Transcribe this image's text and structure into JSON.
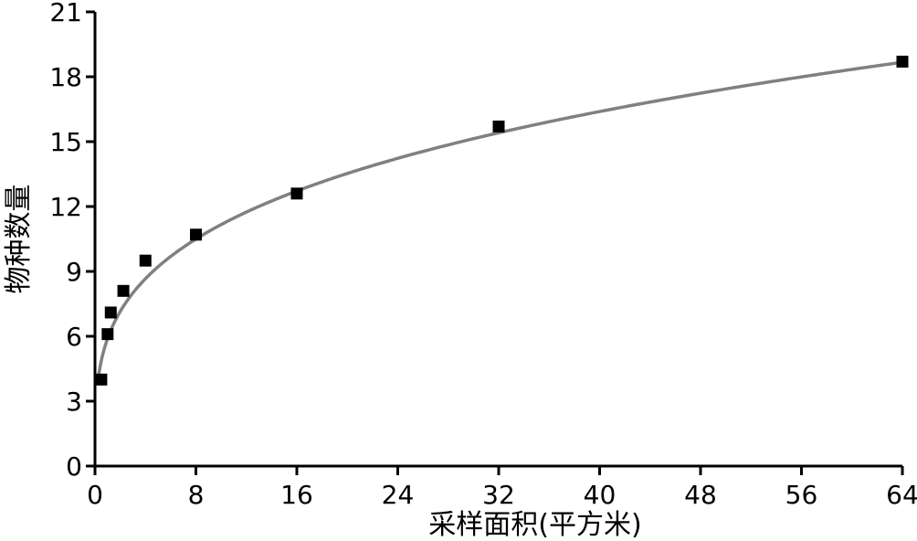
{
  "chart_data": {
    "type": "scatter",
    "xlabel": "采样面积(平方米)",
    "ylabel": "物种数量",
    "xlim": [
      0,
      64
    ],
    "ylim": [
      0,
      21
    ],
    "xticks": [
      "0",
      "8",
      "16",
      "24",
      "32",
      "40",
      "48",
      "56",
      "64"
    ],
    "yticks": [
      "0",
      "3",
      "6",
      "9",
      "12",
      "15",
      "18",
      "21"
    ],
    "grid": false,
    "legend": "none",
    "series": [
      {
        "x": [
          0.5,
          1,
          1.25,
          2.25,
          4,
          8,
          16,
          32,
          64
        ],
        "y": [
          4.0,
          6.1,
          7.1,
          8.1,
          9.5,
          10.7,
          12.6,
          15.7,
          18.7
        ],
        "marker": "square",
        "color": "#000000"
      }
    ],
    "fit_curve": {
      "model": "power",
      "a": 5.9,
      "b": 0.277,
      "color": "#808080",
      "x_start": 0.3,
      "x_end": 64
    }
  }
}
